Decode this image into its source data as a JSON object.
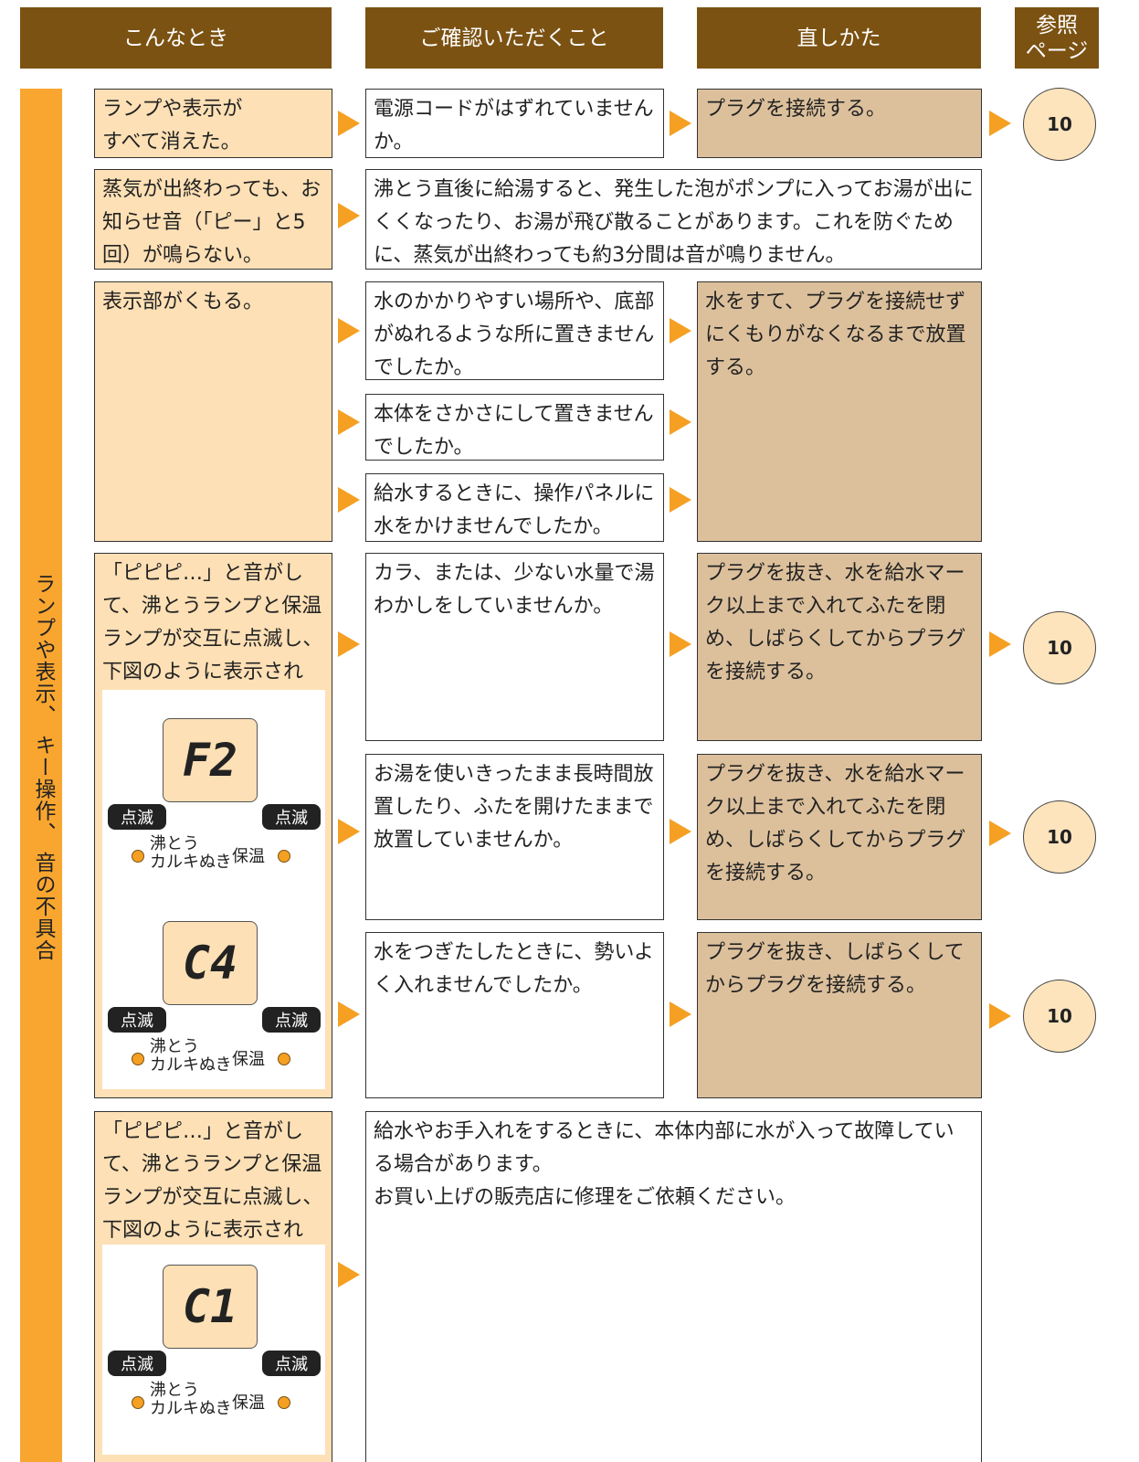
{
  "header": {
    "columns": [
      "こんなとき",
      "ご確認いただくこと",
      "直しかた"
    ],
    "reference": "参照\nページ"
  },
  "side_label": "ランプや表示、 キー操作、 音の不具合",
  "rows": [
    {
      "situation": "ランプや表示が\nすべて消えた。",
      "checks": [
        {
          "check": "電源コードがはずれていませんか。",
          "fix": "プラグを接続する。",
          "page": 10
        }
      ]
    },
    {
      "situation": "蒸気が出終わっても、お知らせ音（「ピー」と5回）が鳴らない。",
      "note": "沸とう直後に給湯すると、発生した泡がポンプに入ってお湯が出にくくなったり、お湯が飛び散ることがあります。これを防ぐために、蒸気が出終わっても約3分間は音が鳴りません。"
    },
    {
      "situation": "表示部がくもる。",
      "checks": [
        "水のかかりやすい場所や、底部がぬれるような所に置きませんでしたか。",
        "本体をさかさにして置きませんでしたか。",
        "給水するときに、操作パネルに水をかけませんでしたか。"
      ],
      "fix": "水をすて、プラグを接続せずにくもりがなくなるまで放置する。"
    },
    {
      "situation": "「ピピピ…」と音がして、沸とうランプと保温ランプが交互に点滅し、下図のように表示される。",
      "displays": [
        {
          "code": "F2",
          "left_badge": "点滅",
          "right_badge": "点滅",
          "left_lamp": "沸とう\nカルキぬき",
          "right_lamp": "保温"
        },
        {
          "code": "C4",
          "left_badge": "点滅",
          "right_badge": "点滅",
          "left_lamp": "沸とう\nカルキぬき",
          "right_lamp": "保温"
        }
      ],
      "checks": [
        {
          "check": "カラ、または、少ない水量で湯わかしをしていませんか。",
          "fix": "プラグを抜き、水を給水マーク以上まで入れてふたを閉め、しばらくしてからプラグを接続する。",
          "page": 10
        },
        {
          "check": "お湯を使いきったまま長時間放置したり、ふたを開けたままで放置していませんか。",
          "fix": "プラグを抜き、水を給水マーク以上まで入れてふたを閉め、しばらくしてからプラグを接続する。",
          "page": 10
        },
        {
          "check": "水をつぎたしたときに、勢いよく入れませんでしたか。",
          "fix": "プラグを抜き、しばらくしてからプラグを接続する。",
          "page": 10
        }
      ]
    },
    {
      "situation": "「ピピピ…」と音がして、沸とうランプと保温ランプが交互に点滅し、下図のように表示される。",
      "displays": [
        {
          "code": "C1",
          "left_badge": "点滅",
          "right_badge": "点滅",
          "left_lamp": "沸とう\nカルキぬき",
          "right_lamp": "保温"
        }
      ],
      "note": "給水やお手入れをするときに、本体内部に水が入って故障している場合があります。\nお買い上げの販売店に修理をご依頼ください。"
    }
  ]
}
